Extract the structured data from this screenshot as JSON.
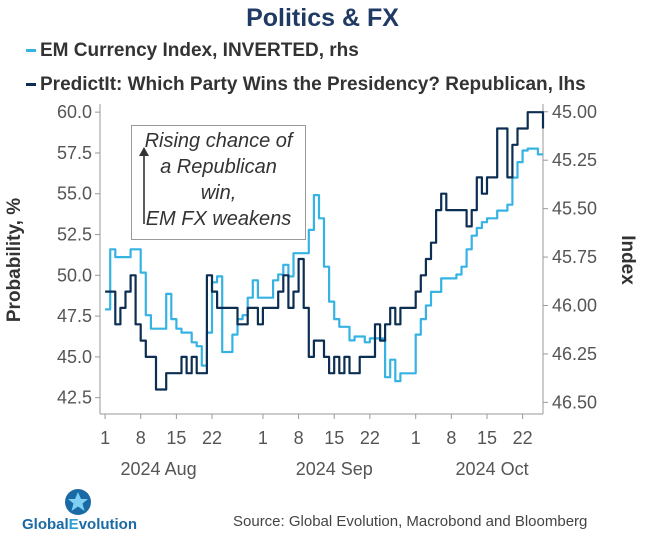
{
  "chart_data": {
    "type": "line",
    "title": "Politics & FX",
    "legend": [
      {
        "label": "EM Currency Index, INVERTED, rhs",
        "color": "#36b3e3"
      },
      {
        "label": "PredictIt: Which Party Wins the Presidency? Republican, lhs",
        "color": "#0d2e53"
      }
    ],
    "ylabel_left": "Probability, %",
    "ylabel_right": "Index",
    "yticks_left": [
      "60.0",
      "57.5",
      "55.0",
      "52.5",
      "50.0",
      "47.5",
      "45.0",
      "42.5"
    ],
    "yticks_right": [
      "45.00",
      "45.25",
      "45.50",
      "45.75",
      "46.00",
      "46.25",
      "46.50"
    ],
    "ylim_left": [
      41.5,
      60.5
    ],
    "ylim_right": [
      46.56,
      44.96
    ],
    "xlim": [
      0,
      87
    ],
    "xticks": [
      {
        "day": 1,
        "label": "1"
      },
      {
        "day": 8,
        "label": "8"
      },
      {
        "day": 15,
        "label": "15"
      },
      {
        "day": 22,
        "label": "22"
      },
      {
        "day": 32,
        "label": "1"
      },
      {
        "day": 39,
        "label": "8"
      },
      {
        "day": 46,
        "label": "15"
      },
      {
        "day": 53,
        "label": "22"
      },
      {
        "day": 62,
        "label": "1"
      },
      {
        "day": 69,
        "label": "8"
      },
      {
        "day": 76,
        "label": "15"
      },
      {
        "day": 83,
        "label": "22"
      }
    ],
    "months": [
      {
        "day": 11.5,
        "label": "2024 Aug"
      },
      {
        "day": 46,
        "label": "2024 Sep"
      },
      {
        "day": 77,
        "label": "2024 Oct"
      }
    ],
    "series": [
      {
        "name": "EM Currency Index, INVERTED, rhs",
        "axis": "right",
        "color": "#36b3e3",
        "x": [
          1,
          2,
          3,
          4,
          5,
          6,
          7,
          8,
          9,
          10,
          11,
          12,
          13,
          14,
          15,
          16,
          17,
          18,
          19,
          20,
          21,
          22,
          23,
          24,
          25,
          26,
          27,
          28,
          29,
          30,
          31,
          32,
          33,
          34,
          35,
          36,
          37,
          38,
          39,
          40,
          41,
          42,
          43,
          44,
          45,
          46,
          47,
          48,
          49,
          50,
          51,
          52,
          53,
          54,
          55,
          56,
          57,
          58,
          59,
          60,
          61,
          62,
          63,
          64,
          65,
          66,
          67,
          68,
          69,
          70,
          71,
          72,
          73,
          74,
          75,
          76,
          77,
          78,
          79,
          80,
          81,
          82,
          83,
          84,
          85,
          86,
          87
        ],
        "y": [
          46.02,
          45.71,
          45.75,
          45.75,
          45.75,
          45.71,
          45.71,
          45.83,
          46.05,
          46.12,
          46.12,
          46.12,
          45.94,
          46.07,
          46.12,
          46.14,
          46.14,
          46.19,
          46.21,
          46.31,
          46.14,
          45.88,
          45.85,
          46.24,
          46.24,
          46.15,
          46.07,
          46.05,
          45.96,
          45.87,
          45.96,
          45.96,
          45.96,
          45.87,
          45.84,
          45.79,
          45.85,
          45.73,
          45.73,
          45.73,
          45.61,
          45.43,
          45.55,
          45.8,
          45.98,
          46.07,
          46.11,
          46.11,
          46.18,
          46.16,
          46.16,
          46.19,
          46.17,
          46.17,
          46.17,
          46.37,
          46.28,
          46.39,
          46.35,
          46.35,
          46.35,
          46.15,
          46.07,
          46.0,
          45.93,
          45.93,
          45.86,
          45.86,
          45.86,
          45.84,
          45.8,
          45.71,
          45.64,
          45.6,
          45.57,
          45.55,
          45.55,
          45.51,
          45.51,
          45.48,
          45.34,
          45.26,
          45.2,
          45.19,
          45.19,
          45.22,
          45.22
        ]
      },
      {
        "name": "PredictIt: Which Party Wins the Presidency? Republican, lhs",
        "axis": "left",
        "color": "#0d2e53",
        "x": [
          1,
          2,
          3,
          4,
          5,
          6,
          7,
          8,
          9,
          10,
          11,
          12,
          13,
          14,
          15,
          16,
          17,
          18,
          19,
          20,
          21,
          22,
          23,
          24,
          25,
          26,
          27,
          28,
          29,
          30,
          31,
          32,
          33,
          34,
          35,
          36,
          37,
          38,
          39,
          40,
          41,
          42,
          43,
          44,
          45,
          46,
          47,
          48,
          49,
          50,
          51,
          52,
          53,
          54,
          55,
          56,
          57,
          58,
          59,
          60,
          61,
          62,
          63,
          64,
          65,
          66,
          67,
          68,
          69,
          70,
          71,
          72,
          73,
          74,
          75,
          76,
          77,
          78,
          79,
          80,
          81,
          82,
          83,
          84,
          85,
          86,
          87
        ],
        "y": [
          49,
          49,
          47,
          48,
          49,
          50,
          47,
          46,
          45,
          45,
          43,
          43,
          44,
          44,
          44,
          45,
          44,
          45,
          44,
          44,
          50,
          49,
          48,
          48,
          48,
          48,
          47,
          47,
          48,
          48,
          47,
          48,
          48,
          48,
          49,
          50,
          48,
          49,
          51,
          48,
          45,
          46,
          46,
          45,
          44,
          45,
          44,
          45,
          44,
          44,
          45,
          45,
          45,
          47,
          46,
          47,
          48,
          47,
          48,
          48,
          48,
          49,
          50,
          51,
          52,
          54,
          55,
          54,
          54,
          54,
          54,
          53,
          54,
          56,
          55,
          56,
          56,
          59,
          59,
          56,
          58,
          59,
          59,
          60,
          60,
          60,
          59
        ]
      }
    ],
    "annotation": "Rising chance of a Republican win, EM FX weakens"
  },
  "annotation": {
    "lines": [
      "Rising chance of",
      "a Republican",
      "win,",
      "EM FX weakens"
    ]
  },
  "logo": {
    "prefix": "Global",
    "e": "E",
    "suffix": "volution"
  },
  "source": "Source: Global Evolution, Macrobond and Bloomberg"
}
